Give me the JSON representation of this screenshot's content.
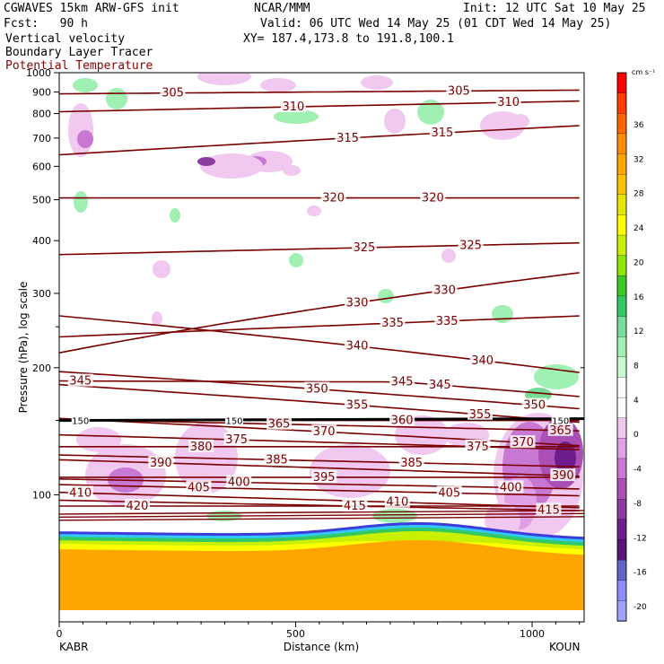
{
  "header": {
    "title": "CGWAVES 15km ARW-GFS init",
    "center": "NCAR/MMM",
    "init": "Init: 12 UTC Sat 10 May 25",
    "fcst": "Fcst:   90 h",
    "valid": "Valid: 06 UTC Wed 14 May 25 (01 CDT Wed 14 May 25)",
    "field1": "Vertical velocity",
    "field2": "Boundary Layer Tracer",
    "field3": "Potential Temperature",
    "xy": "XY= 187.4,173.8 to 191.8,100.1"
  },
  "bottom": {
    "left_station": "KABR",
    "right_station": "KOUN"
  },
  "colors": {
    "theta": "#7a0000",
    "pv_line": "#000000",
    "header_red": "#8b0000"
  },
  "chart_data": {
    "type": "heatmap",
    "description_of_fields": [
      "Vertical velocity (shaded)",
      "Potential Temperature (contours)",
      "Boundary Layer Tracer (shaded near surface)"
    ],
    "xlabel": "Distance (km)",
    "ylabel": "Pressure (hPa), log scale",
    "x_ticks": [
      0,
      500,
      1000
    ],
    "xlim": [
      0,
      1110
    ],
    "y_ticks": [
      100,
      200,
      300,
      400,
      500,
      600,
      700,
      800,
      900,
      1000
    ],
    "ylim": [
      1000,
      50
    ],
    "y_scale": "log",
    "colorbar": {
      "units": "cm s⁻¹",
      "tick_labels": [
        36,
        32,
        28,
        24,
        20,
        16,
        12,
        8,
        4,
        0,
        -4,
        -8,
        -12,
        -16,
        -20
      ],
      "colors": [
        "#ff0000",
        "#ff3c00",
        "#ff6600",
        "#ff8c00",
        "#ffa500",
        "#ffc000",
        "#e6e600",
        "#ffff00",
        "#c8f000",
        "#8ce600",
        "#3cc828",
        "#32c864",
        "#78dc96",
        "#a0f0b4",
        "#c8fad2",
        "#ffffff",
        "#ffffff",
        "#f0c8f0",
        "#e1a0e6",
        "#c878d2",
        "#aa50b4",
        "#8c3ca0",
        "#6e1e8c",
        "#5a1478",
        "#6464c8",
        "#8c8cff",
        "#a0a0ff"
      ]
    },
    "theta_contours": [
      {
        "value": 305,
        "labels": [
          {
            "x": 240,
            "p": 895
          },
          {
            "x": 845,
            "p": 905
          }
        ]
      },
      {
        "value": 310,
        "labels": [
          {
            "x": 495,
            "p": 830
          },
          {
            "x": 950,
            "p": 850
          }
        ]
      },
      {
        "value": 315,
        "labels": [
          {
            "x": 610,
            "p": 700
          },
          {
            "x": 810,
            "p": 720
          }
        ]
      },
      {
        "value": 320,
        "labels": [
          {
            "x": 580,
            "p": 505
          },
          {
            "x": 790,
            "p": 505
          }
        ]
      },
      {
        "value": 325,
        "labels": [
          {
            "x": 645,
            "p": 385
          },
          {
            "x": 870,
            "p": 390
          }
        ]
      },
      {
        "value": 330,
        "labels": [
          {
            "x": 630,
            "p": 285
          },
          {
            "x": 815,
            "p": 305
          }
        ]
      },
      {
        "value": 335,
        "labels": [
          {
            "x": 705,
            "p": 255
          },
          {
            "x": 820,
            "p": 258
          }
        ]
      },
      {
        "value": 340,
        "labels": [
          {
            "x": 630,
            "p": 225
          },
          {
            "x": 895,
            "p": 208
          }
        ]
      },
      {
        "value": 345,
        "labels": [
          {
            "x": 45,
            "p": 186
          },
          {
            "x": 725,
            "p": 185
          },
          {
            "x": 805,
            "p": 182
          }
        ]
      },
      {
        "value": 350,
        "labels": [
          {
            "x": 545,
            "p": 178
          },
          {
            "x": 1005,
            "p": 163
          }
        ]
      },
      {
        "value": 355,
        "labels": [
          {
            "x": 630,
            "p": 163
          },
          {
            "x": 890,
            "p": 155
          }
        ]
      },
      {
        "value": 360,
        "labels": [
          {
            "x": 725,
            "p": 150
          }
        ]
      },
      {
        "value": 365,
        "labels": [
          {
            "x": 465,
            "p": 147
          },
          {
            "x": 1060,
            "p": 142
          }
        ]
      },
      {
        "value": 370,
        "labels": [
          {
            "x": 560,
            "p": 141
          },
          {
            "x": 980,
            "p": 133
          }
        ]
      },
      {
        "value": 375,
        "labels": [
          {
            "x": 375,
            "p": 135
          },
          {
            "x": 885,
            "p": 130
          }
        ]
      },
      {
        "value": 380,
        "labels": [
          {
            "x": 300,
            "p": 130
          }
        ]
      },
      {
        "value": 385,
        "labels": [
          {
            "x": 460,
            "p": 121
          },
          {
            "x": 745,
            "p": 119
          }
        ]
      },
      {
        "value": 390,
        "labels": [
          {
            "x": 215,
            "p": 119
          },
          {
            "x": 1065,
            "p": 111
          }
        ]
      },
      {
        "value": 395,
        "labels": [
          {
            "x": 560,
            "p": 110
          }
        ]
      },
      {
        "value": 400,
        "labels": [
          {
            "x": 380,
            "p": 107
          },
          {
            "x": 955,
            "p": 104
          }
        ]
      },
      {
        "value": 405,
        "labels": [
          {
            "x": 295,
            "p": 104
          },
          {
            "x": 825,
            "p": 101
          }
        ]
      },
      {
        "value": 410,
        "labels": [
          {
            "x": 45,
            "p": 101
          },
          {
            "x": 715,
            "p": 96
          }
        ]
      },
      {
        "value": 415,
        "labels": [
          {
            "x": 625,
            "p": 94
          },
          {
            "x": 1035,
            "p": 92
          }
        ]
      },
      {
        "value": 420,
        "labels": [
          {
            "x": 165,
            "p": 94
          }
        ]
      }
    ],
    "pv_line": {
      "value": 150,
      "p": 150,
      "labels": [
        {
          "x": 45,
          "text": "150"
        },
        {
          "x": 370,
          "text": "150"
        },
        {
          "x": 1060,
          "text": "150"
        }
      ]
    }
  }
}
